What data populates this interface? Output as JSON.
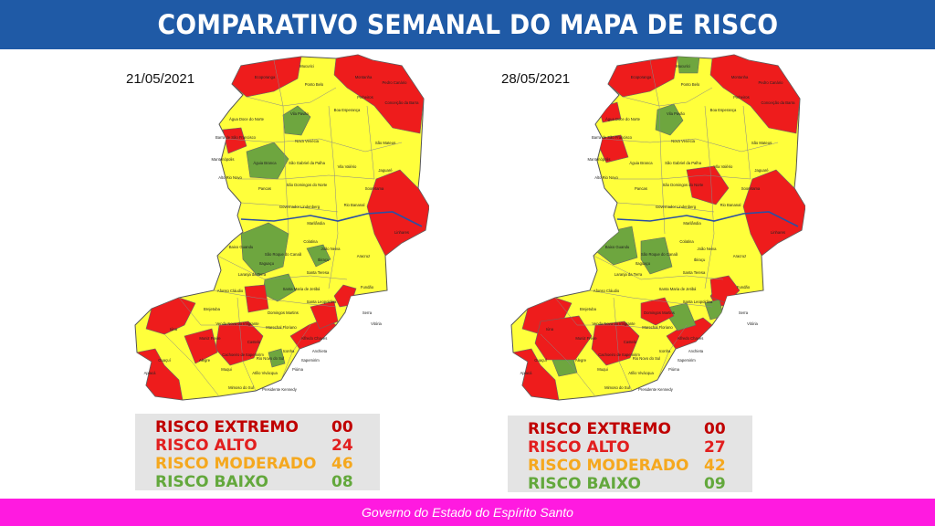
{
  "title": "COMPARATIVO SEMANAL DO MAPA DE RISCO",
  "footer": "Governo do Estado do Espírito Santo",
  "colors": {
    "banner": "#1f5aa6",
    "footer": "#ff1ae0",
    "extremo": "#c00000",
    "alto": "#e21f1f",
    "moderado": "#f5a81e",
    "baixo": "#63a83c",
    "map_yellow": "#ffff3b",
    "map_red": "#ee1c1c",
    "map_green": "#6ea63f",
    "river": "#2c4fa3"
  },
  "maps": [
    {
      "date": "21/05/2021",
      "legend": [
        {
          "label": "RISCO EXTREMO",
          "value": "00",
          "level": "extremo"
        },
        {
          "label": "RISCO ALTO",
          "value": "24",
          "level": "alto"
        },
        {
          "label": "RISCO MODERADO",
          "value": "46",
          "level": "moderado"
        },
        {
          "label": "RISCO BAIXO",
          "value": "08",
          "level": "baixo"
        }
      ]
    },
    {
      "date": "28/05/2021",
      "legend": [
        {
          "label": "RISCO EXTREMO",
          "value": "00",
          "level": "extremo"
        },
        {
          "label": "RISCO ALTO",
          "value": "27",
          "level": "alto"
        },
        {
          "label": "RISCO MODERADO",
          "value": "42",
          "level": "moderado"
        },
        {
          "label": "RISCO BAIXO",
          "value": "09",
          "level": "baixo"
        }
      ]
    }
  ],
  "municipality_labels": [
    "Mucurici",
    "Montanha",
    "Pedro Canário",
    "Ecoporanga",
    "Ponto Belo",
    "Pinheiros",
    "Conceição da Barra",
    "Boa Esperança",
    "Água Doce do Norte",
    "Barra de São Francisco",
    "Vila Pavão",
    "Nova Venécia",
    "São Mateus",
    "Mantenópolis",
    "Águia Branca",
    "São Gabriel da Palha",
    "Vila Valério",
    "Jaguaré",
    "Alto Rio Novo",
    "Pancas",
    "São Domingos do Norte",
    "Sooretama",
    "Governador Lindenberg",
    "Rio Bananal",
    "Linhares",
    "Marilândia",
    "Colatina",
    "Baixo Guandu",
    "São Roque do Canaã",
    "João Neiva",
    "Aracruz",
    "Itaguaçu",
    "Santa Teresa",
    "Laranja da Terra",
    "Ibiraçu",
    "Fundão",
    "Afonso Cláudio",
    "Santa Maria de Jetibá",
    "Serra",
    "Brejetuba",
    "Santa Leopoldina",
    "Vitória",
    "Domingos Martins",
    "Iúna",
    "Muniz Freire",
    "Venda Nova do Imigrante",
    "Marechal Floriano",
    "Castelo",
    "Alfredo Chaves",
    "Guaçuí",
    "Alegre",
    "Muqui",
    "Atílio Vivácqua",
    "Itapemirim",
    "Presidente Kennedy",
    "Mimoso do Sul",
    "Cachoeiro de Itapemirim",
    "Anchieta",
    "Piúma",
    "Iconha",
    "Rio Novo do Sul",
    "Apiacá"
  ]
}
